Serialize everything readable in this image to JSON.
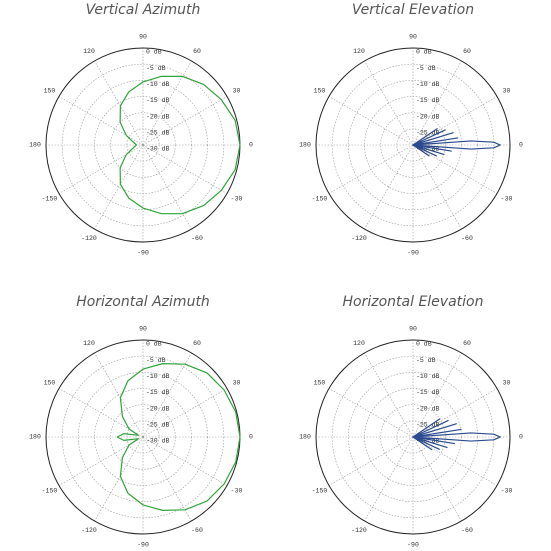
{
  "chart_data": [
    {
      "type": "polar",
      "title": "Vertical Azimuth",
      "color": "#2fa43a",
      "rlim": [
        -30,
        0
      ],
      "rticks": [
        {
          "value": 0,
          "label": "0 dB"
        },
        {
          "value": -5,
          "label": "-5 dB"
        },
        {
          "value": -10,
          "label": "-10 dB"
        },
        {
          "value": -15,
          "label": "-15 dB"
        },
        {
          "value": -20,
          "label": "-20 dB"
        },
        {
          "value": -25,
          "label": "-25 dB"
        },
        {
          "value": -30,
          "label": "-30 dB"
        }
      ],
      "thetaticks": [
        90,
        60,
        30,
        0,
        -30,
        -60,
        -90,
        -120,
        -150,
        180,
        150,
        120
      ],
      "theta": [
        -180,
        -165,
        -150,
        -135,
        -120,
        -105,
        -90,
        -75,
        -60,
        -45,
        -30,
        -15,
        0,
        15,
        30,
        45,
        60,
        75,
        90,
        105,
        120,
        135,
        150,
        165,
        180
      ],
      "values": [
        -28,
        -27,
        -24,
        -20,
        -16,
        -13,
        -10.5,
        -8,
        -5.5,
        -3.5,
        -2,
        -0.5,
        0,
        -0.5,
        -2,
        -3.5,
        -5.5,
        -8,
        -10.5,
        -13,
        -16,
        -20,
        -24,
        -27,
        -28
      ]
    },
    {
      "type": "polar",
      "title": "Vertical Elevation",
      "color": "#2b4a8f",
      "rlim": [
        -30,
        0
      ],
      "rticks": [
        {
          "value": 0,
          "label": "0 dB"
        },
        {
          "value": -5,
          "label": "-5 dB"
        },
        {
          "value": -10,
          "label": "-10 dB"
        },
        {
          "value": -15,
          "label": "-15 dB"
        },
        {
          "value": -20,
          "label": "-20 dB"
        },
        {
          "value": -25,
          "label": "-25 dB"
        },
        {
          "value": -30,
          "label": "-30 dB"
        }
      ],
      "thetaticks": [
        90,
        60,
        30,
        0,
        -30,
        -60,
        -90,
        -120,
        -150,
        180,
        150,
        120
      ],
      "theta": [
        -40,
        -34,
        -29,
        -25,
        -21,
        -17,
        -13,
        -9,
        -6,
        -4,
        -2,
        0,
        2,
        4,
        6,
        9,
        13,
        17,
        21,
        25,
        29,
        34,
        40
      ],
      "values": [
        -30,
        -24,
        -30,
        -22,
        -30,
        -20,
        -30,
        -18,
        -30,
        -12,
        -5,
        -3,
        -5,
        -12,
        -30,
        -16,
        -30,
        -17,
        -30,
        -19,
        -30,
        -21,
        -30
      ]
    },
    {
      "type": "polar",
      "title": "Horizontal Azimuth",
      "color": "#2fa43a",
      "rlim": [
        -30,
        0
      ],
      "rticks": [
        {
          "value": 0,
          "label": "0 dB"
        },
        {
          "value": -5,
          "label": "-5 dB"
        },
        {
          "value": -10,
          "label": "-10 dB"
        },
        {
          "value": -15,
          "label": "-15 dB"
        },
        {
          "value": -20,
          "label": "-20 dB"
        },
        {
          "value": -25,
          "label": "-25 dB"
        },
        {
          "value": -30,
          "label": "-30 dB"
        }
      ],
      "thetaticks": [
        90,
        60,
        30,
        0,
        -30,
        -60,
        -90,
        -120,
        -150,
        180,
        150,
        120
      ],
      "theta": [
        -180,
        -170,
        -160,
        -150,
        -135,
        -120,
        -105,
        -90,
        -75,
        -60,
        -45,
        -30,
        -15,
        0,
        15,
        30,
        45,
        60,
        75,
        90,
        105,
        120,
        135,
        150,
        160,
        170,
        180
      ],
      "values": [
        -22,
        -24,
        -28.5,
        -25,
        -21,
        -16,
        -12,
        -9,
        -6.5,
        -4,
        -2,
        -1,
        -0.3,
        0,
        -0.3,
        -1,
        -2,
        -4,
        -6.5,
        -9,
        -12,
        -16,
        -21,
        -25,
        -28.5,
        -24,
        -22
      ]
    },
    {
      "type": "polar",
      "title": "Horizontal Elevation",
      "color": "#2b4a8f",
      "rlim": [
        -30,
        0
      ],
      "rticks": [
        {
          "value": 0,
          "label": "0 dB"
        },
        {
          "value": -5,
          "label": "-5 dB"
        },
        {
          "value": -10,
          "label": "-10 dB"
        },
        {
          "value": -15,
          "label": "-15 dB"
        },
        {
          "value": -20,
          "label": "-20 dB"
        },
        {
          "value": -25,
          "label": "-25 dB"
        },
        {
          "value": -30,
          "label": "-30 dB"
        }
      ],
      "thetaticks": [
        90,
        60,
        30,
        0,
        -30,
        -60,
        -90,
        -120,
        -150,
        180,
        150,
        120
      ],
      "theta": [
        -40,
        -34,
        -29,
        -25,
        -21,
        -17,
        -13,
        -9,
        -6,
        -4,
        -2,
        0,
        2,
        4,
        6,
        9,
        13,
        17,
        21,
        25,
        29,
        34,
        40
      ],
      "values": [
        -30,
        -23,
        -30,
        -21,
        -30,
        -19,
        -30,
        -17,
        -30,
        -12,
        -5,
        -3,
        -5,
        -12,
        -30,
        -15,
        -30,
        -16,
        -30,
        -18,
        -30,
        -20,
        -30
      ]
    }
  ]
}
